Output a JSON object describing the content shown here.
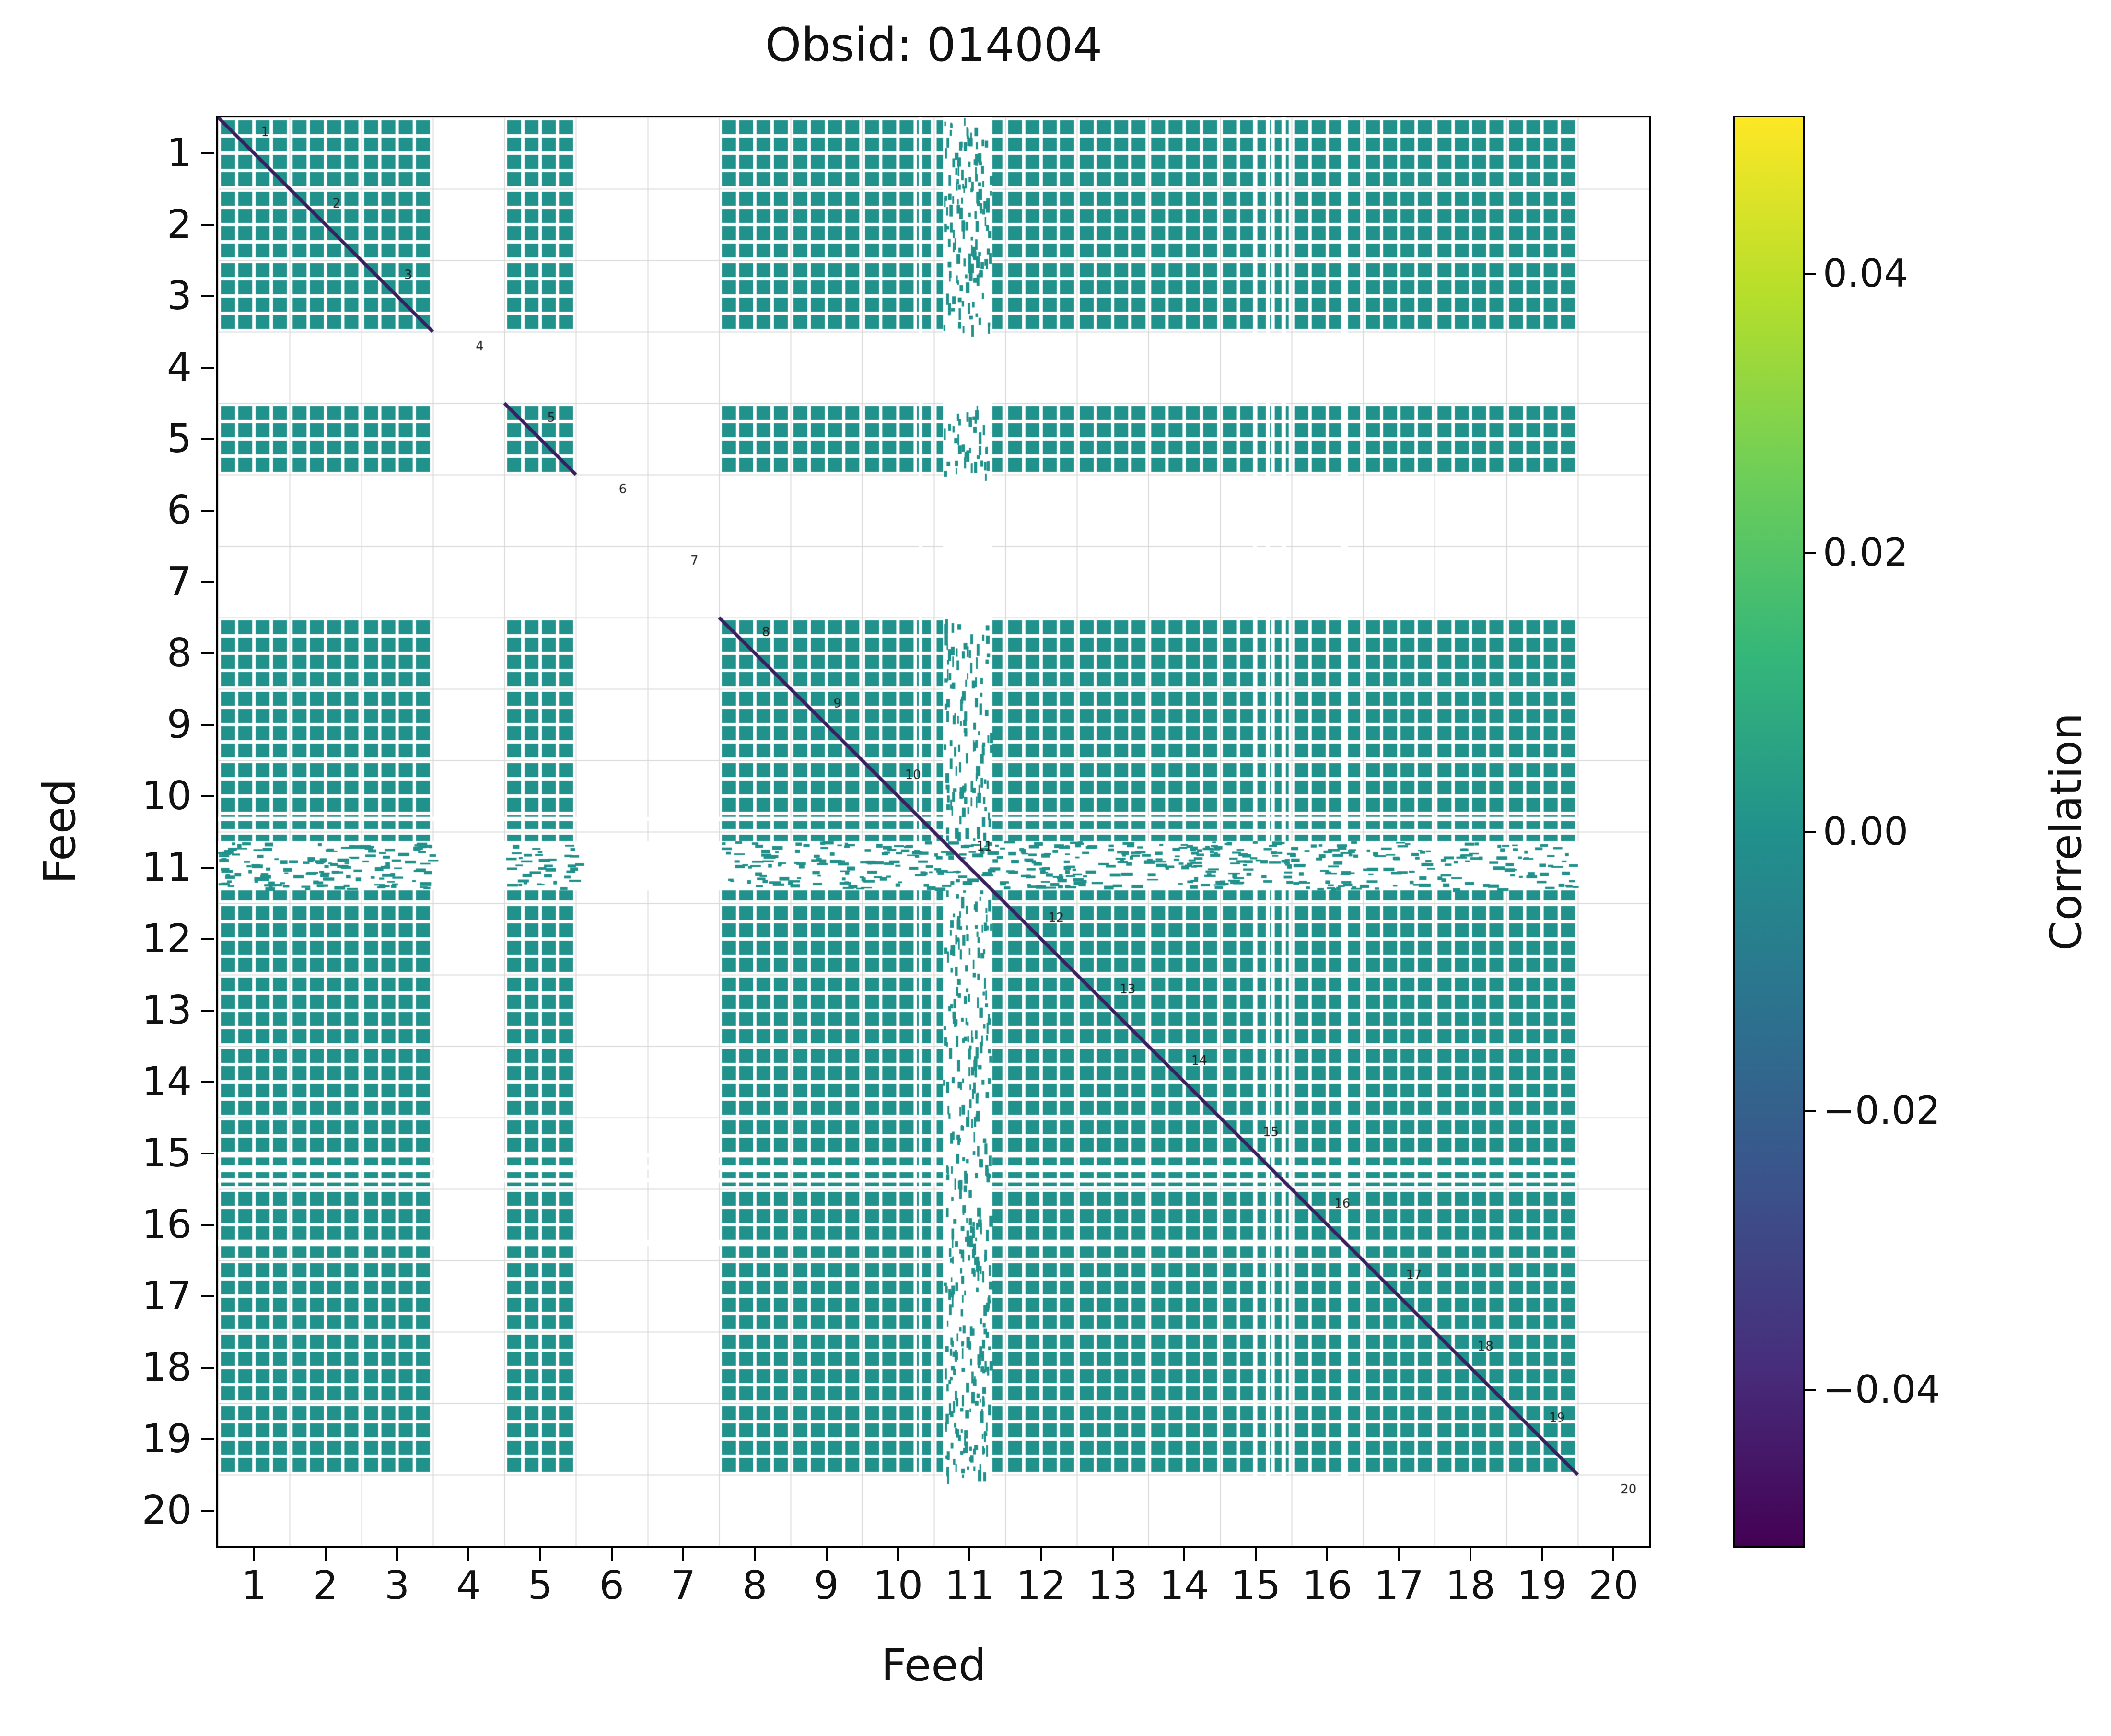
{
  "chart_data": {
    "type": "heatmap",
    "title": "Obsid: 014004",
    "xlabel": "Feed",
    "ylabel": "Feed",
    "n_feeds": 20,
    "feed_ticks": [
      "1",
      "2",
      "3",
      "4",
      "5",
      "6",
      "7",
      "8",
      "9",
      "10",
      "11",
      "12",
      "13",
      "14",
      "15",
      "16",
      "17",
      "18",
      "19",
      "20"
    ],
    "diagonal_feed_labels": [
      "1",
      "2",
      "3",
      "4",
      "5",
      "6",
      "7",
      "8",
      "9",
      "10",
      "11",
      "12",
      "13",
      "14",
      "15",
      "16",
      "17",
      "18",
      "19",
      "20"
    ],
    "present_feeds": [
      1,
      2,
      3,
      5,
      8,
      9,
      10,
      11,
      12,
      13,
      14,
      15,
      16,
      17,
      18,
      19
    ],
    "missing_feeds": [
      4,
      6,
      7,
      20
    ],
    "sparse_feeds": [
      11
    ],
    "off_diagonal_value": 0.0,
    "subcells_per_feed": 4,
    "sparse_bands": {
      "vertical": [
        [
          10.13,
          10.82
        ]
      ],
      "horizontal": [
        [
          10.13,
          10.82
        ]
      ]
    },
    "white_stripes": {
      "vertical": [
        [
          9.79,
          9.84
        ],
        [
          14.46,
          14.52
        ],
        [
          14.64,
          14.7
        ],
        [
          14.86,
          14.92
        ],
        [
          15.69,
          15.79
        ]
      ],
      "horizontal": [
        [
          9.79,
          9.85
        ],
        [
          14.5,
          14.56
        ],
        [
          14.67,
          14.73
        ],
        [
          14.85,
          14.91
        ],
        [
          15.71,
          15.8
        ]
      ]
    },
    "colors": {
      "cell": "#21918c",
      "diagonal": "#381f5f",
      "grid": "#d9d9d9",
      "label_text": "#1a1a1a"
    },
    "colorbar": {
      "label": "Correlation",
      "colormap": "viridis",
      "vmin": -0.0512,
      "vmax": 0.0512,
      "ticks": [
        {
          "label": "0.04",
          "value": 0.04
        },
        {
          "label": "0.02",
          "value": 0.02
        },
        {
          "label": "0.00",
          "value": 0.0
        },
        {
          "label": "−0.02",
          "value": -0.02
        },
        {
          "label": "−0.04",
          "value": -0.04
        }
      ],
      "colormap_stops": [
        "#fde725",
        "#b5de2b",
        "#6ece58",
        "#35b779",
        "#21918c",
        "#2c728e",
        "#3b528b",
        "#472d7b",
        "#440154"
      ]
    }
  }
}
